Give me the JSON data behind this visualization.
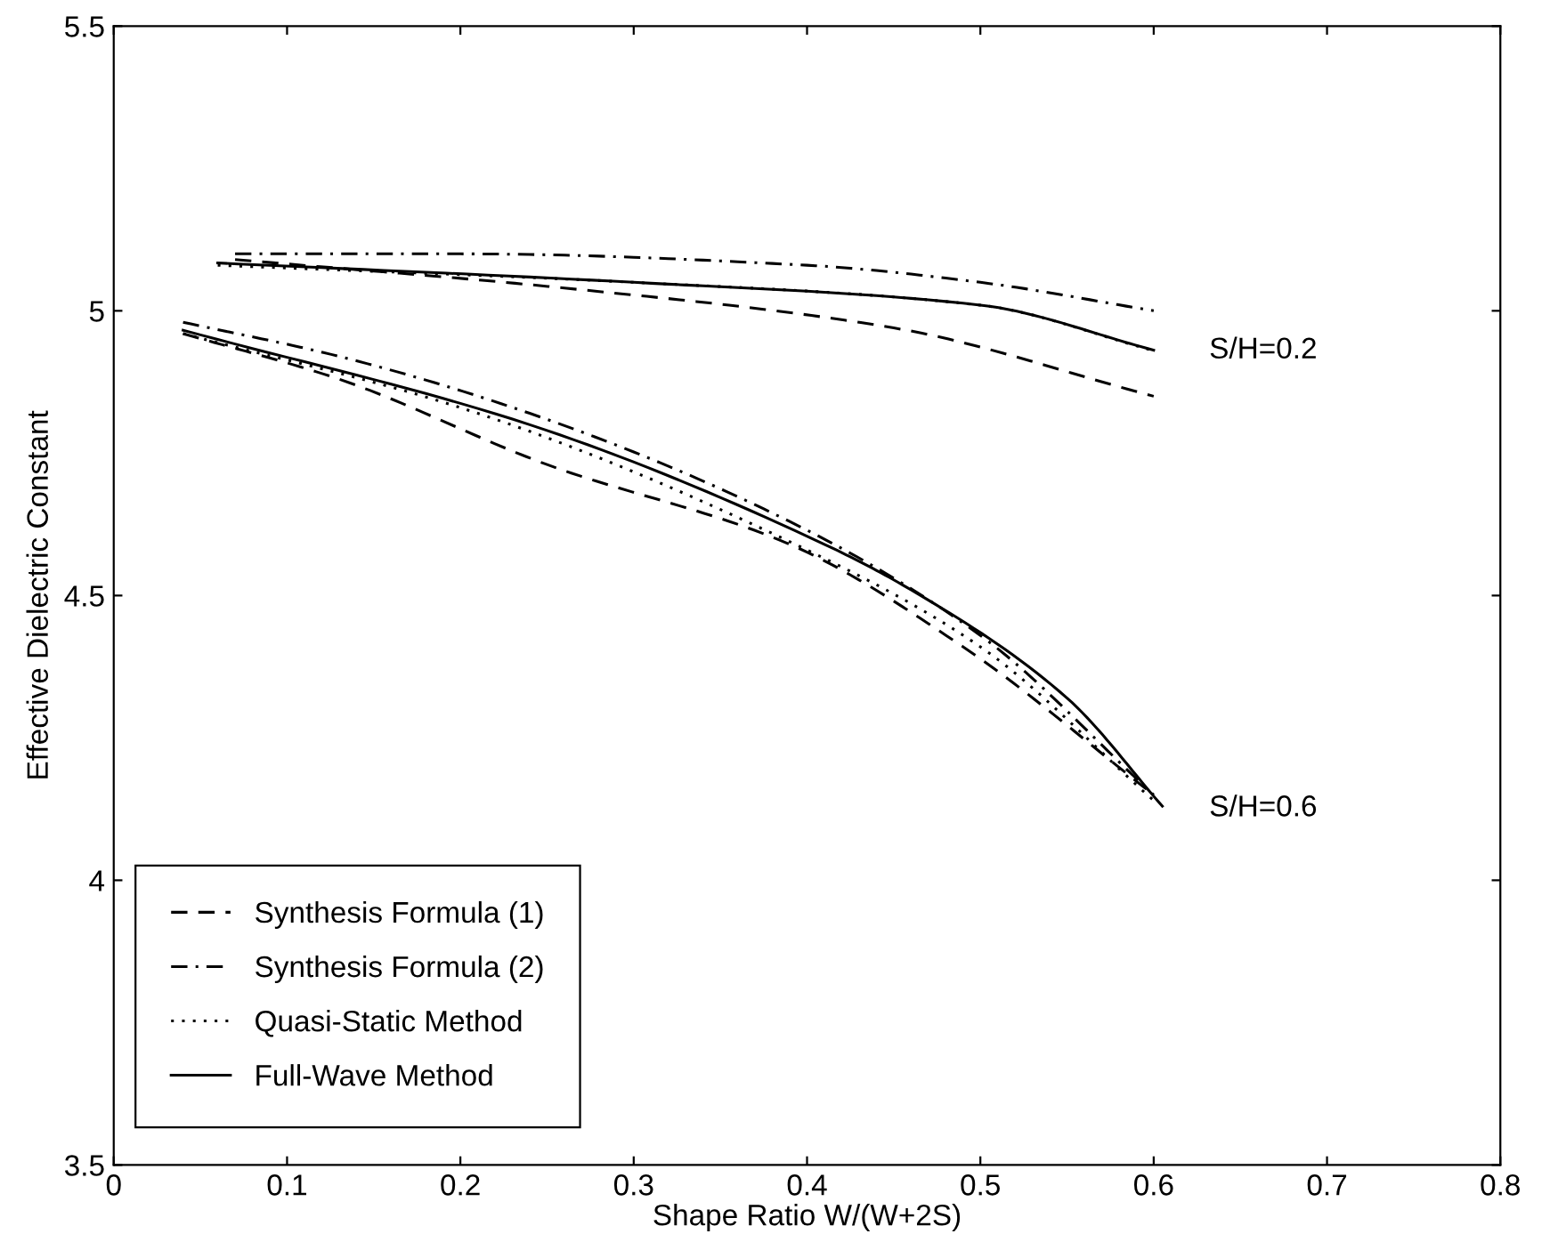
{
  "chart_data": {
    "type": "line",
    "xlabel": "Shape Ratio W/(W+2S)",
    "ylabel": "Effective Dielectric Constant",
    "xlim": [
      0,
      0.8
    ],
    "ylim": [
      3.5,
      5.5
    ],
    "xticks": [
      0,
      0.1,
      0.2,
      0.3,
      0.4,
      0.5,
      0.6,
      0.7,
      0.8
    ],
    "yticks": [
      3.5,
      4,
      4.5,
      5,
      5.5
    ],
    "grid": false,
    "legend": "bottom left",
    "marker": "none",
    "series": [
      {
        "name": "Synthesis Formula (1)",
        "color": "#000000",
        "line_style": "dashed",
        "x": [
          0.04,
          0.13,
          0.25,
          0.39,
          0.49,
          0.6
        ],
        "values": [
          4.96,
          4.88,
          4.73,
          4.59,
          4.41,
          4.15
        ]
      },
      {
        "name": "Synthesis Formula (2)",
        "color": "#000000",
        "line_style": "dashdot",
        "x": [
          0.04,
          0.13,
          0.24,
          0.39,
          0.5,
          0.6
        ],
        "values": [
          4.98,
          4.92,
          4.82,
          4.63,
          4.43,
          4.15
        ]
      },
      {
        "name": "Quasi-Static Method",
        "color": "#000000",
        "line_style": "dotted",
        "x": [
          0.04,
          0.2,
          0.4,
          0.5,
          0.6
        ],
        "values": [
          4.96,
          4.83,
          4.58,
          4.41,
          4.14
        ]
      },
      {
        "name": "Full-Wave Method",
        "color": "#000000",
        "line_style": "solid",
        "x": [
          0.04,
          0.24,
          0.41,
          0.46,
          0.55,
          0.605
        ],
        "values": [
          4.966,
          4.8,
          4.59,
          4.51,
          4.32,
          4.13
        ]
      },
      {
        "color": "#000000",
        "line_style": "dashed",
        "x": [
          0.07,
          0.26,
          0.45,
          0.6
        ],
        "values": [
          5.09,
          5.04,
          4.97,
          4.85
        ]
      },
      {
        "color": "#000000",
        "line_style": "dashdot",
        "x": [
          0.07,
          0.2,
          0.4,
          0.5,
          0.6
        ],
        "values": [
          5.1,
          5.1,
          5.08,
          5.05,
          5.0
        ]
      },
      {
        "color": "#000000",
        "line_style": "dotted",
        "x": [
          0.06,
          0.3,
          0.5,
          0.6
        ],
        "values": [
          5.08,
          5.05,
          5.01,
          4.93
        ]
      },
      {
        "color": "#000000",
        "line_style": "solid",
        "x": [
          0.06,
          0.3,
          0.5,
          0.6
        ],
        "values": [
          5.084,
          5.05,
          5.01,
          4.931
        ]
      }
    ],
    "annotations": [
      "S/H=0.2",
      "S/H=0.6"
    ]
  }
}
